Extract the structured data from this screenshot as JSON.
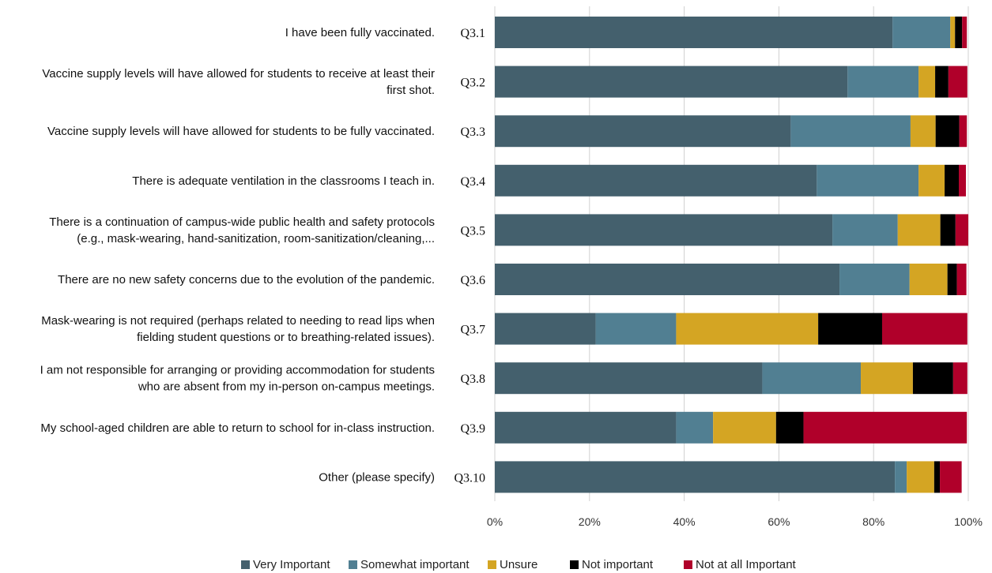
{
  "chart_data": {
    "type": "bar",
    "orientation": "horizontal",
    "stacked": true,
    "percent_stacked": true,
    "title": "",
    "xlabel": "",
    "ylabel": "",
    "xlim": [
      0,
      100
    ],
    "x_ticks": [
      "0%",
      "20%",
      "40%",
      "60%",
      "80%",
      "100%"
    ],
    "grid": "vertical",
    "legend_position": "bottom",
    "categories": [
      {
        "code": "Q3.1",
        "label": [
          "I have been fully vaccinated."
        ]
      },
      {
        "code": "Q3.2",
        "label": [
          "Vaccine supply levels will have allowed for students to receive at least their",
          "first shot."
        ]
      },
      {
        "code": "Q3.3",
        "label": [
          "Vaccine supply levels will have allowed for students to be fully vaccinated."
        ]
      },
      {
        "code": "Q3.4",
        "label": [
          "There is adequate ventilation in the classrooms I teach in."
        ]
      },
      {
        "code": "Q3.5",
        "label": [
          "There is a continuation of campus-wide public health and safety protocols",
          "(e.g., mask-wearing, hand-sanitization, room-sanitization/cleaning,..."
        ]
      },
      {
        "code": "Q3.6",
        "label": [
          "There are no new safety concerns due to the evolution of the pandemic."
        ]
      },
      {
        "code": "Q3.7",
        "label": [
          "Mask-wearing is not required (perhaps related to needing to read lips when",
          "fielding student questions or to breathing-related issues)."
        ]
      },
      {
        "code": "Q3.8",
        "label": [
          "I am not responsible for arranging or providing accommodation for students",
          "who are absent from my in-person on-campus meetings."
        ]
      },
      {
        "code": "Q3.9",
        "label": [
          "My school-aged children are able to return to school for in-class instruction."
        ]
      },
      {
        "code": "Q3.10",
        "label": [
          "Other (please specify)"
        ]
      }
    ],
    "series": [
      {
        "name": "Very Important",
        "color": "#44606d",
        "values": [
          84,
          74.5,
          62.5,
          68,
          71.3,
          72.8,
          21.3,
          56.5,
          38.3,
          84.5
        ]
      },
      {
        "name": "Somewhat important",
        "color": "#517f92",
        "values": [
          12.2,
          15,
          25.3,
          21.5,
          13.8,
          14.8,
          17,
          20.8,
          7.8,
          2.5
        ]
      },
      {
        "name": "Unsure",
        "color": "#d4a523",
        "values": [
          1,
          3.5,
          5.3,
          5.5,
          9,
          8,
          30,
          11,
          13.3,
          5.8
        ]
      },
      {
        "name": "Not important",
        "color": "#000000",
        "values": [
          1.5,
          2.8,
          5,
          3,
          3.2,
          2,
          13.5,
          8.5,
          5.8,
          1.2
        ]
      },
      {
        "name": "Not at all Important",
        "color": "#b0002a",
        "values": [
          1,
          4,
          1.6,
          1.5,
          2.7,
          2,
          18,
          3,
          34.5,
          4.6
        ]
      }
    ]
  }
}
